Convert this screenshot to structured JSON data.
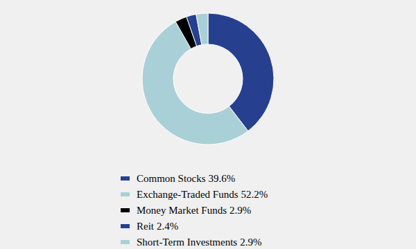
{
  "chart_data": {
    "type": "pie",
    "donut": true,
    "categories": [
      "Common Stocks",
      "Exchange-Traded Funds",
      "Money Market Funds",
      "Reit",
      "Short-Term Investments"
    ],
    "values": [
      39.6,
      52.2,
      2.9,
      2.4,
      2.9
    ],
    "value_labels": [
      "39.6%",
      "52.2%",
      "2.9%",
      "2.4%",
      "2.9%"
    ],
    "colors": [
      "#26408f",
      "#a9d0d6",
      "#000000",
      "#26408f",
      "#a9d0d6"
    ],
    "legend": "bottom"
  }
}
